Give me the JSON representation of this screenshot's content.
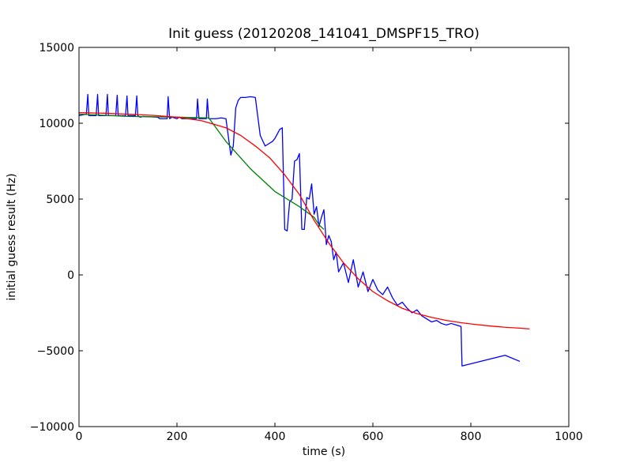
{
  "chart_data": {
    "type": "line",
    "title": "Init guess (20120208_141041_DMSPF15_TRO)",
    "xlabel": "time (s)",
    "ylabel": "initial guess result (Hz)",
    "xlim": [
      0,
      1000
    ],
    "ylim": [
      -10000,
      15000
    ],
    "xticks": [
      0,
      200,
      400,
      600,
      800,
      1000
    ],
    "yticks": [
      -10000,
      -5000,
      0,
      5000,
      10000,
      15000
    ],
    "xtick_labels": [
      "0",
      "200",
      "400",
      "600",
      "800",
      "1000"
    ],
    "ytick_labels": [
      "−10000",
      "−5000",
      "0",
      "5000",
      "10000",
      "15000"
    ],
    "grid": false,
    "legend": false,
    "series": [
      {
        "color": "#0000ff",
        "x": [
          0,
          15,
          18,
          20,
          35,
          38,
          40,
          55,
          58,
          60,
          75,
          78,
          80,
          95,
          98,
          100,
          115,
          118,
          120,
          125,
          130,
          160,
          165,
          180,
          182,
          185,
          190,
          200,
          205,
          210,
          220,
          225,
          240,
          242,
          245,
          260,
          262,
          265,
          280,
          290,
          300,
          310,
          315,
          320,
          325,
          330,
          335,
          340,
          350,
          360,
          370,
          380,
          385,
          390,
          395,
          400,
          405,
          410,
          415,
          420,
          425,
          430,
          435,
          440,
          445,
          450,
          455,
          460,
          465,
          470,
          475,
          480,
          485,
          490,
          495,
          500,
          505,
          510,
          515,
          520,
          525,
          530,
          540,
          550,
          560,
          570,
          580,
          590,
          600,
          610,
          620,
          630,
          640,
          650,
          660,
          670,
          680,
          690,
          700,
          710,
          720,
          730,
          740,
          750,
          760,
          770,
          780,
          782,
          870,
          900
        ],
        "y": [
          10500,
          10600,
          11900,
          10500,
          10500,
          11900,
          10500,
          10500,
          11900,
          10500,
          10500,
          11850,
          10500,
          10500,
          11800,
          10500,
          10500,
          11800,
          10500,
          10400,
          10450,
          10400,
          10300,
          10300,
          11750,
          10300,
          10400,
          10300,
          10400,
          10300,
          10300,
          10300,
          10300,
          11600,
          10300,
          10300,
          11600,
          10300,
          10300,
          10350,
          10300,
          7900,
          8500,
          11000,
          11500,
          11700,
          11700,
          11700,
          11750,
          11700,
          9200,
          8500,
          8600,
          8700,
          8800,
          9000,
          9300,
          9600,
          9700,
          3000,
          2900,
          4800,
          5000,
          7500,
          7600,
          8000,
          3000,
          3000,
          5100,
          5000,
          6000,
          4000,
          4500,
          3200,
          3800,
          4300,
          2000,
          2600,
          2200,
          1000,
          1500,
          200,
          800,
          -500,
          1000,
          -800,
          200,
          -1100,
          -300,
          -1000,
          -1300,
          -800,
          -1500,
          -2000,
          -1800,
          -2200,
          -2500,
          -2300,
          -2700,
          -2900,
          -3100,
          -3000,
          -3200,
          -3300,
          -3200,
          -3300,
          -3400,
          -6000,
          -5300,
          -5700
        ]
      },
      {
        "color": "#008000",
        "x": [
          0,
          100,
          200,
          265,
          300,
          350,
          400,
          450,
          480,
          490,
          500
        ],
        "y": [
          10600,
          10450,
          10400,
          10350,
          8800,
          7000,
          5500,
          4500,
          3800,
          3300,
          3000
        ]
      },
      {
        "color": "#ff0000",
        "x": [
          0,
          50,
          100,
          150,
          200,
          250,
          300,
          330,
          360,
          390,
          420,
          450,
          480,
          510,
          540,
          570,
          600,
          630,
          660,
          690,
          720,
          750,
          780,
          810,
          840,
          870,
          900,
          920
        ],
        "y": [
          10700,
          10660,
          10600,
          10520,
          10400,
          10170,
          9700,
          9200,
          8500,
          7700,
          6600,
          5300,
          3600,
          2100,
          800,
          -250,
          -1100,
          -1700,
          -2200,
          -2550,
          -2800,
          -3000,
          -3150,
          -3270,
          -3370,
          -3450,
          -3510,
          -3560
        ]
      }
    ]
  }
}
